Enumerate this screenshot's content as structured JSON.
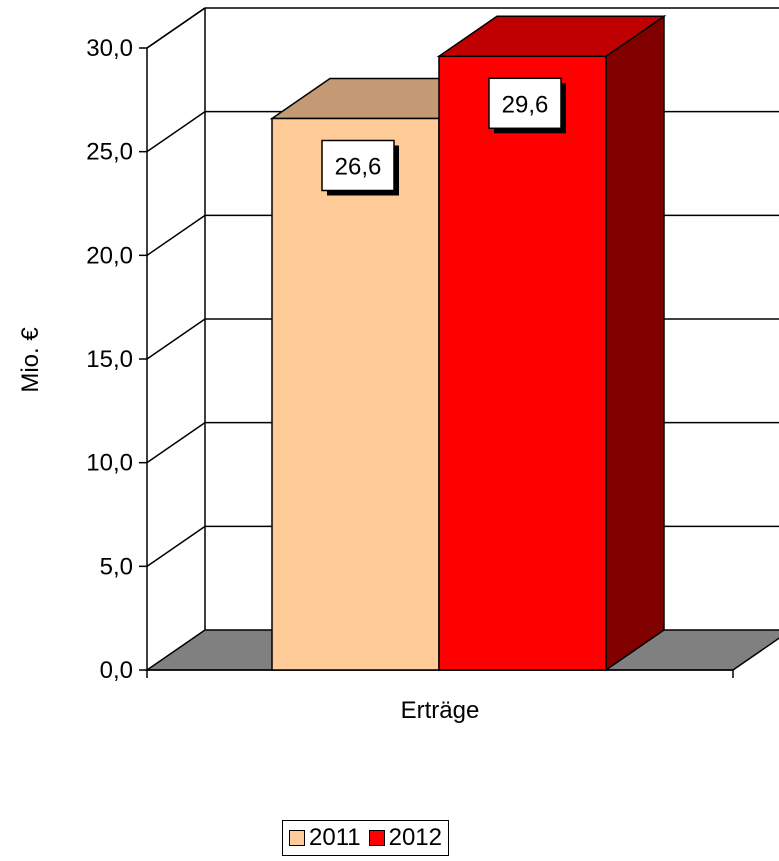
{
  "chart_data": {
    "type": "bar",
    "title": "",
    "xlabel": "",
    "ylabel": "Mio. €",
    "categories": [
      "Erträge"
    ],
    "ylim": [
      0,
      30
    ],
    "yticks": [
      "0,0",
      "5,0",
      "10,0",
      "15,0",
      "20,0",
      "25,0",
      "30,0"
    ],
    "grid": true,
    "legend_position": "bottom",
    "series": [
      {
        "name": "2011",
        "values": [
          26.6
        ],
        "label": "26,6",
        "color": "#FFCC99",
        "top_color": "#C49A74",
        "side_color": "#B08060"
      },
      {
        "name": "2012",
        "values": [
          29.6
        ],
        "label": "29,6",
        "color": "#FF0000",
        "top_color": "#C00000",
        "side_color": "#800000"
      }
    ]
  }
}
